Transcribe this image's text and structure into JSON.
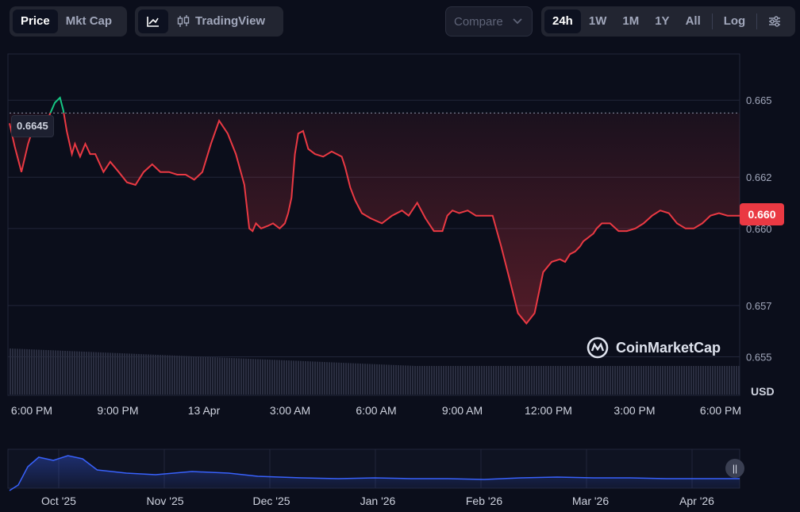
{
  "toolbar": {
    "view_tabs": [
      {
        "label": "Price",
        "active": true
      },
      {
        "label": "Mkt Cap",
        "active": false
      }
    ],
    "chart_style": {
      "line_icon": "line-chart-icon",
      "candle_icon": "candlestick-icon",
      "tradingview_label": "TradingView"
    },
    "compare": {
      "label": "Compare",
      "icon": "chevron-down-icon"
    },
    "ranges": [
      {
        "label": "24h",
        "active": true
      },
      {
        "label": "1W",
        "active": false
      },
      {
        "label": "1M",
        "active": false
      },
      {
        "label": "1Y",
        "active": false
      },
      {
        "label": "All",
        "active": false
      }
    ],
    "log_label": "Log",
    "settings_icon": "sliders-icon"
  },
  "chart": {
    "current_price_label": "0.660",
    "high_marker_label": "0.6645",
    "currency_label": "USD",
    "watermark": "CoinMarketCap",
    "y_ticks": [
      "0.665",
      "0.662",
      "0.660",
      "0.657",
      "0.655"
    ],
    "x_ticks": [
      "6:00 PM",
      "9:00 PM",
      "13 Apr",
      "3:00 AM",
      "6:00 AM",
      "9:00 AM",
      "12:00 PM",
      "3:00 PM",
      "6:00 PM"
    ],
    "nav_ticks": [
      "Oct '25",
      "Nov '25",
      "Dec '25",
      "Jan '26",
      "Feb '26",
      "Mar '26",
      "Apr '26"
    ],
    "colors": {
      "up": "#16c784",
      "down": "#ea3943",
      "grid": "#22263a",
      "volume": "#2a2e40",
      "nav_line": "#3861fb"
    }
  },
  "chart_data": {
    "type": "line",
    "x_unit": "hours",
    "y_unit": "USD",
    "reference_price": 0.6645,
    "ylim": [
      0.6535,
      0.6668
    ],
    "x": [
      0,
      0.17,
      0.39,
      0.61,
      0.83,
      1.05,
      1.27,
      1.49,
      1.66,
      1.77,
      1.88,
      2.05,
      2.15,
      2.32,
      2.49,
      2.65,
      2.82,
      3.09,
      3.31,
      3.59,
      3.86,
      4.14,
      4.41,
      4.69,
      4.96,
      5.24,
      5.51,
      5.79,
      6.07,
      6.34,
      6.62,
      6.89,
      7.17,
      7.44,
      7.72,
      7.88,
      7.99,
      8.1,
      8.27,
      8.49,
      8.66,
      8.88,
      9.05,
      9.16,
      9.27,
      9.32,
      9.38,
      9.49,
      9.65,
      9.82,
      10.04,
      10.31,
      10.59,
      10.92,
      11.03,
      11.2,
      11.36,
      11.58,
      11.86,
      12.24,
      12.57,
      12.9,
      13.12,
      13.4,
      13.67,
      13.95,
      14.23,
      14.39,
      14.56,
      14.78,
      15.06,
      15.33,
      15.61,
      15.88,
      16.16,
      16.44,
      16.71,
      16.99,
      17.26,
      17.54,
      17.82,
      18.09,
      18.26,
      18.42,
      18.59,
      18.75,
      18.86,
      18.97,
      19.08,
      19.19,
      19.3,
      19.47,
      19.74,
      20.02,
      20.29,
      20.57,
      20.84,
      21.12,
      21.39,
      21.67,
      21.94,
      22.22,
      22.49,
      22.77,
      23.04,
      23.32,
      23.6,
      23.87,
      24.0
    ],
    "values": [
      0.6641,
      0.6632,
      0.6622,
      0.6633,
      0.6641,
      0.6637,
      0.6643,
      0.6649,
      0.6651,
      0.6646,
      0.6638,
      0.6629,
      0.6633,
      0.6628,
      0.6633,
      0.6629,
      0.6629,
      0.6622,
      0.6626,
      0.6622,
      0.6618,
      0.6617,
      0.6622,
      0.6625,
      0.6622,
      0.6622,
      0.6621,
      0.6621,
      0.6619,
      0.6622,
      0.6633,
      0.6642,
      0.6637,
      0.6629,
      0.6617,
      0.66,
      0.6599,
      0.6602,
      0.66,
      0.6601,
      0.6602,
      0.66,
      0.6602,
      0.6606,
      0.6612,
      0.662,
      0.6629,
      0.6637,
      0.6638,
      0.6631,
      0.6629,
      0.6628,
      0.663,
      0.6628,
      0.6624,
      0.6616,
      0.6611,
      0.6606,
      0.6604,
      0.6602,
      0.6605,
      0.6607,
      0.6605,
      0.661,
      0.6604,
      0.6599,
      0.6599,
      0.6605,
      0.6607,
      0.6606,
      0.6607,
      0.6605,
      0.6605,
      0.6605,
      0.6593,
      0.658,
      0.6567,
      0.6563,
      0.6567,
      0.6583,
      0.6587,
      0.6588,
      0.6587,
      0.659,
      0.6591,
      0.6593,
      0.6595,
      0.6596,
      0.6597,
      0.6598,
      0.66,
      0.6602,
      0.6602,
      0.6599,
      0.6599,
      0.66,
      0.6602,
      0.6605,
      0.6607,
      0.6606,
      0.6602,
      0.66,
      0.66,
      0.6602,
      0.6605,
      0.6606,
      0.6605,
      0.6605,
      0.6605
    ],
    "y_ticks": [
      0.665,
      0.662,
      0.66,
      0.657,
      0.655
    ],
    "x_ticks": [
      "6:00 PM",
      "9:00 PM",
      "13 Apr",
      "3:00 AM",
      "6:00 AM",
      "9:00 AM",
      "12:00 PM",
      "3:00 PM",
      "6:00 PM"
    ],
    "grid": true
  }
}
